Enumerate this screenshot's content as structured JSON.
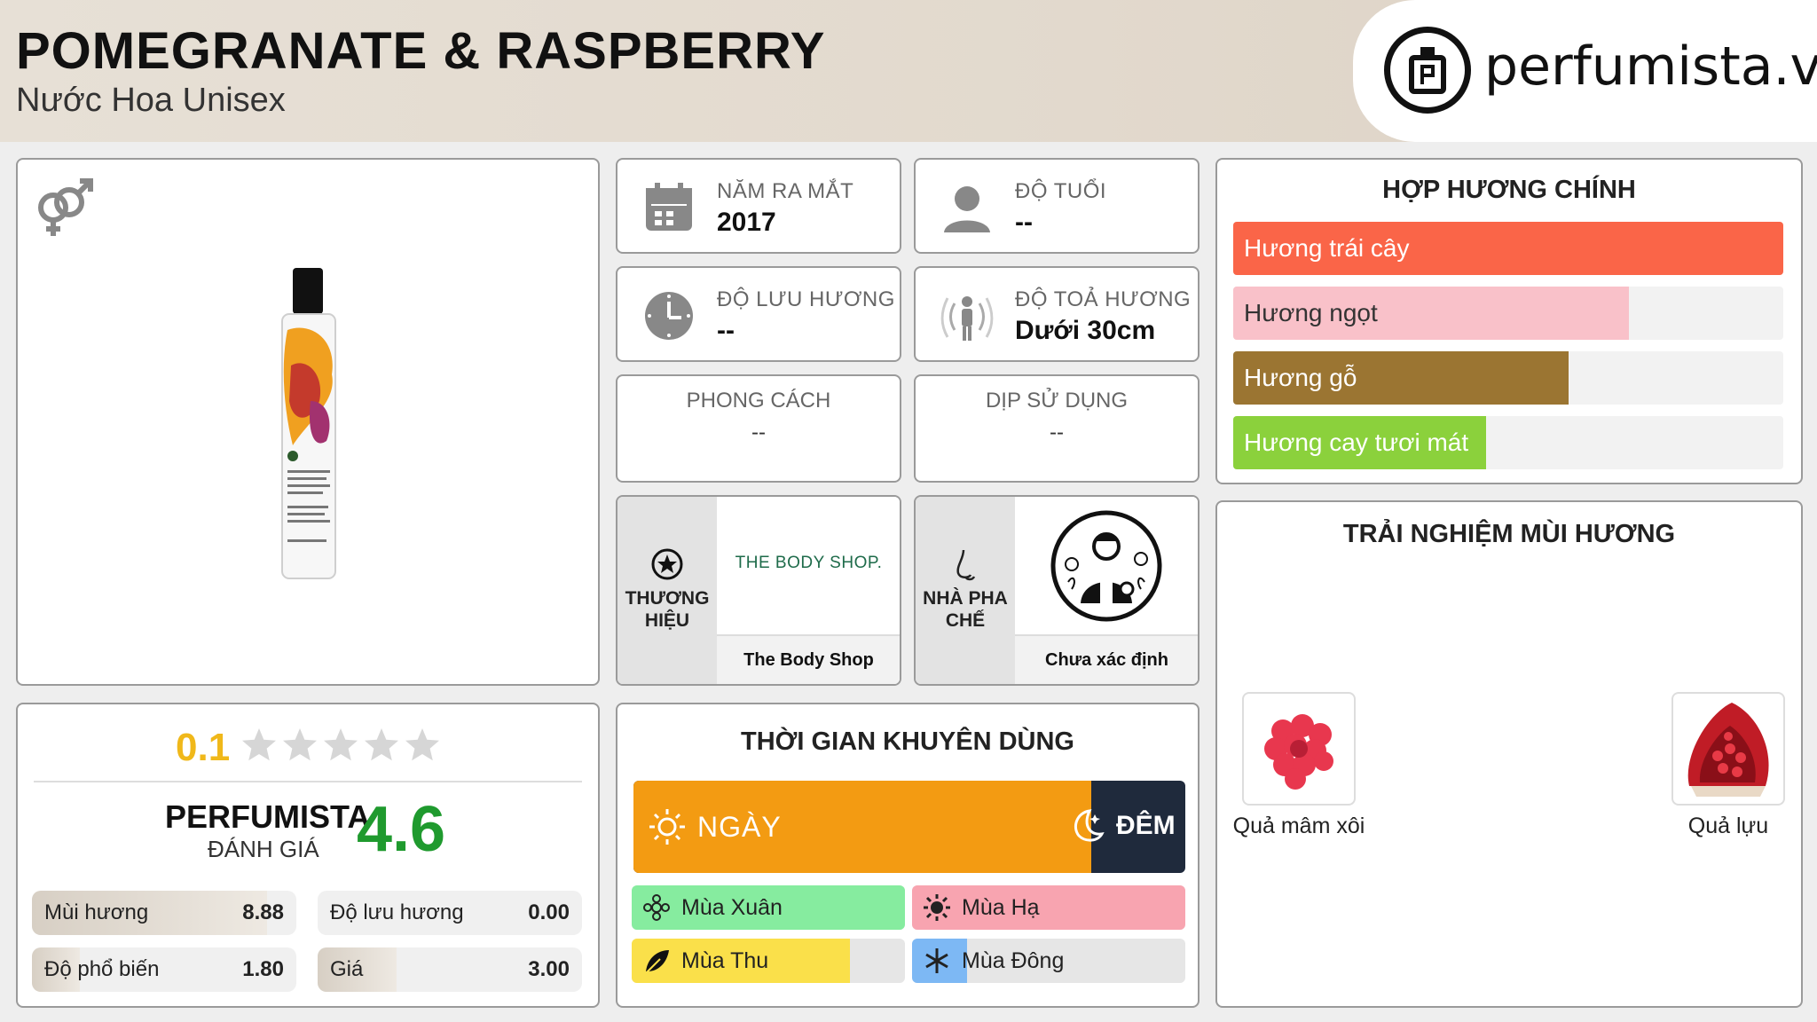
{
  "header": {
    "title": "POMEGRANATE & RASPBERRY",
    "subtitle": "Nước Hoa Unisex",
    "logo_text": "perfumista.vn"
  },
  "product": {
    "gender_icon": "unisex-icon",
    "bottle_label": "POMEGRANATE & RASPBERRY"
  },
  "info": {
    "release": {
      "label": "NĂM RA MẮT",
      "value": "2017",
      "icon": "calendar-icon"
    },
    "age": {
      "label": "ĐỘ TUỔI",
      "value": "--",
      "icon": "user-icon"
    },
    "longevity": {
      "label": "ĐỘ LƯU HƯƠNG",
      "value": "--",
      "icon": "clock-icon"
    },
    "sillage": {
      "label": "ĐỘ TOẢ HƯƠNG",
      "value": "Dưới 30cm",
      "icon": "sillage-icon"
    },
    "style": {
      "label": "PHONG CÁCH",
      "value": "--"
    },
    "occasion": {
      "label": "DỊP SỬ DỤNG",
      "value": "--"
    }
  },
  "brand": {
    "label": "THƯƠNG HIỆU",
    "logo_text": "THE BODY SHOP.",
    "name": "The Body Shop"
  },
  "perfumer": {
    "label": "NHÀ PHA CHẾ",
    "name": "Chưa xác định"
  },
  "accords": {
    "title": "HỢP HƯƠNG CHÍNH",
    "items": [
      {
        "label": "Hương trái cây",
        "level": 1.0,
        "color": "#fa6548"
      },
      {
        "label": "Hương ngọt",
        "level": 0.72,
        "color": "#f9c1c9"
      },
      {
        "label": "Hương gỗ",
        "level": 0.61,
        "color": "#9b7532"
      },
      {
        "label": "Hương cay tươi mát",
        "level": 0.46,
        "color": "#8bd13c"
      }
    ]
  },
  "rating": {
    "community_score": "0.1",
    "community_stars": 0.1,
    "brand_name": "PERFUMISTA",
    "brand_sub": "ĐÁNH GIÁ",
    "score": "4.6",
    "metrics": [
      {
        "label": "Mùi hương",
        "value": "8.88",
        "level": 0.888
      },
      {
        "label": "Độ lưu hương",
        "value": "0.00",
        "level": 0.0
      },
      {
        "label": "Độ phổ biến",
        "value": "1.80",
        "level": 0.18
      },
      {
        "label": "Giá",
        "value": "3.00",
        "level": 0.3
      }
    ]
  },
  "usage_time": {
    "title": "THỜI GIAN KHUYÊN DÙNG",
    "day_label": "NGÀY",
    "night_label": "ĐÊM",
    "day_level": 0.83,
    "seasons": [
      {
        "label": "Mùa Xuân",
        "level": 1.0,
        "color": "#86ec9f",
        "icon": "flower-icon"
      },
      {
        "label": "Mùa Hạ",
        "level": 1.0,
        "color": "#f8a4b0",
        "icon": "sun-icon"
      },
      {
        "label": "Mùa Thu",
        "level": 0.8,
        "color": "#fae04a",
        "icon": "leaf-icon"
      },
      {
        "label": "Mùa Đông",
        "level": 0.2,
        "color": "#7db8f4",
        "icon": "snowflake-icon"
      }
    ]
  },
  "notes": {
    "title": "TRẢI NGHIỆM MÙI HƯƠNG",
    "items": [
      {
        "label": "Quả mâm xôi",
        "icon": "raspberry-icon"
      },
      {
        "label": "Quả lựu",
        "icon": "pomegranate-icon"
      }
    ]
  }
}
